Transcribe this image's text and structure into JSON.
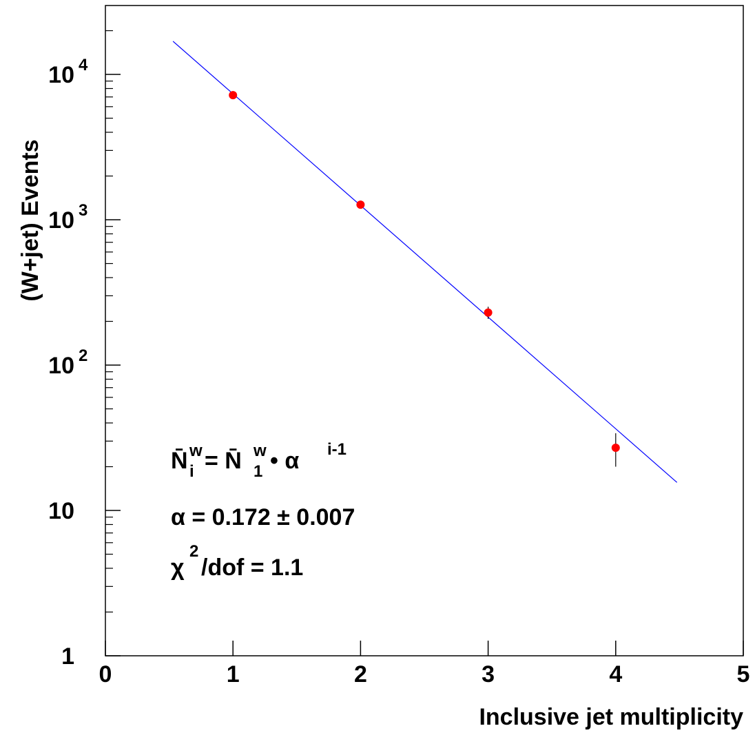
{
  "chart_data": {
    "type": "scatter",
    "x_label": "Inclusive jet multiplicity",
    "y_label": "(W+jet) Events",
    "log_y": true,
    "xlim": [
      0,
      5
    ],
    "xticks": [
      0,
      1,
      2,
      3,
      4,
      5
    ],
    "ylim": [
      1,
      29800
    ],
    "yticks": [
      1,
      10,
      {
        "value": 100,
        "label": "10",
        "exponent": "2"
      },
      {
        "value": 1000,
        "label": "10",
        "exponent": "3"
      },
      {
        "value": 10000,
        "label": "10",
        "exponent": "4"
      }
    ],
    "series": [
      {
        "color": "#ff0000",
        "x": [
          1,
          2,
          3,
          4
        ],
        "values": [
          7200,
          1270,
          230,
          27
        ],
        "errors": [
          null,
          null,
          22,
          7
        ]
      }
    ],
    "fit": {
      "color": "#0000ff",
      "x": [
        0.53,
        4.48
      ],
      "values": [
        16900,
        15.6
      ]
    },
    "annotations": [
      [
        {
          "text": "N̄",
          "role": "base"
        },
        {
          "text": "w",
          "role": "sup"
        },
        {
          "text": "i",
          "role": "sub"
        },
        {
          "text": "= N̄",
          "role": "base"
        },
        {
          "text": "w",
          "role": "sup"
        },
        {
          "text": "1",
          "role": "sub"
        },
        {
          "text": "• α",
          "role": "base"
        },
        {
          "text": "i-1",
          "role": "sup"
        }
      ],
      [
        {
          "text": "α = 0.172 ± 0.007",
          "role": "base"
        }
      ],
      [
        {
          "text": "χ",
          "role": "base"
        },
        {
          "text": "2",
          "role": "sup"
        },
        {
          "text": "/dof = 1.1",
          "role": "base"
        }
      ]
    ]
  }
}
